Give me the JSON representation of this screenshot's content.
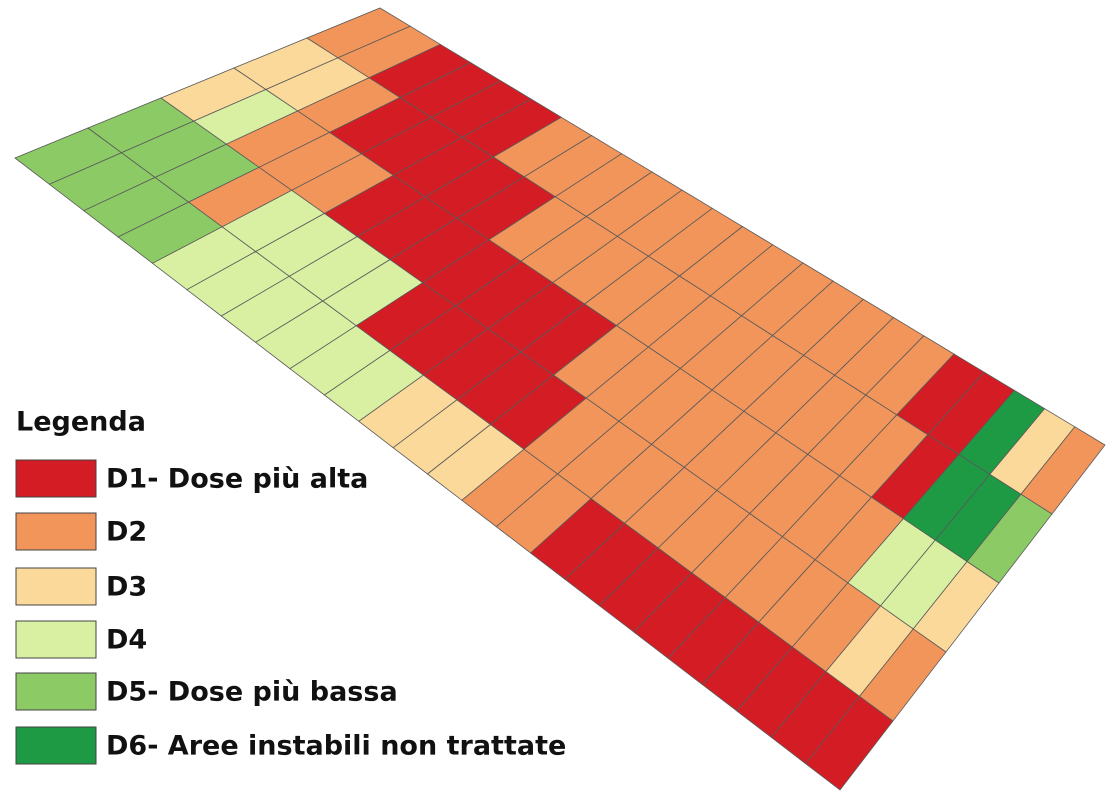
{
  "legend": {
    "title": "Legenda",
    "items": [
      {
        "label": "D1- Dose più alta",
        "color": "#d41c24"
      },
      {
        "label": "D2",
        "color": "#f2955a"
      },
      {
        "label": "D3",
        "color": "#fbd99a"
      },
      {
        "label": "D4",
        "color": "#d9f0a3"
      },
      {
        "label": "D5- Dose più bassa",
        "color": "#8cca66"
      },
      {
        "label": "D6- Aree instabili non trattate",
        "color": "#1e9944"
      }
    ]
  }
}
